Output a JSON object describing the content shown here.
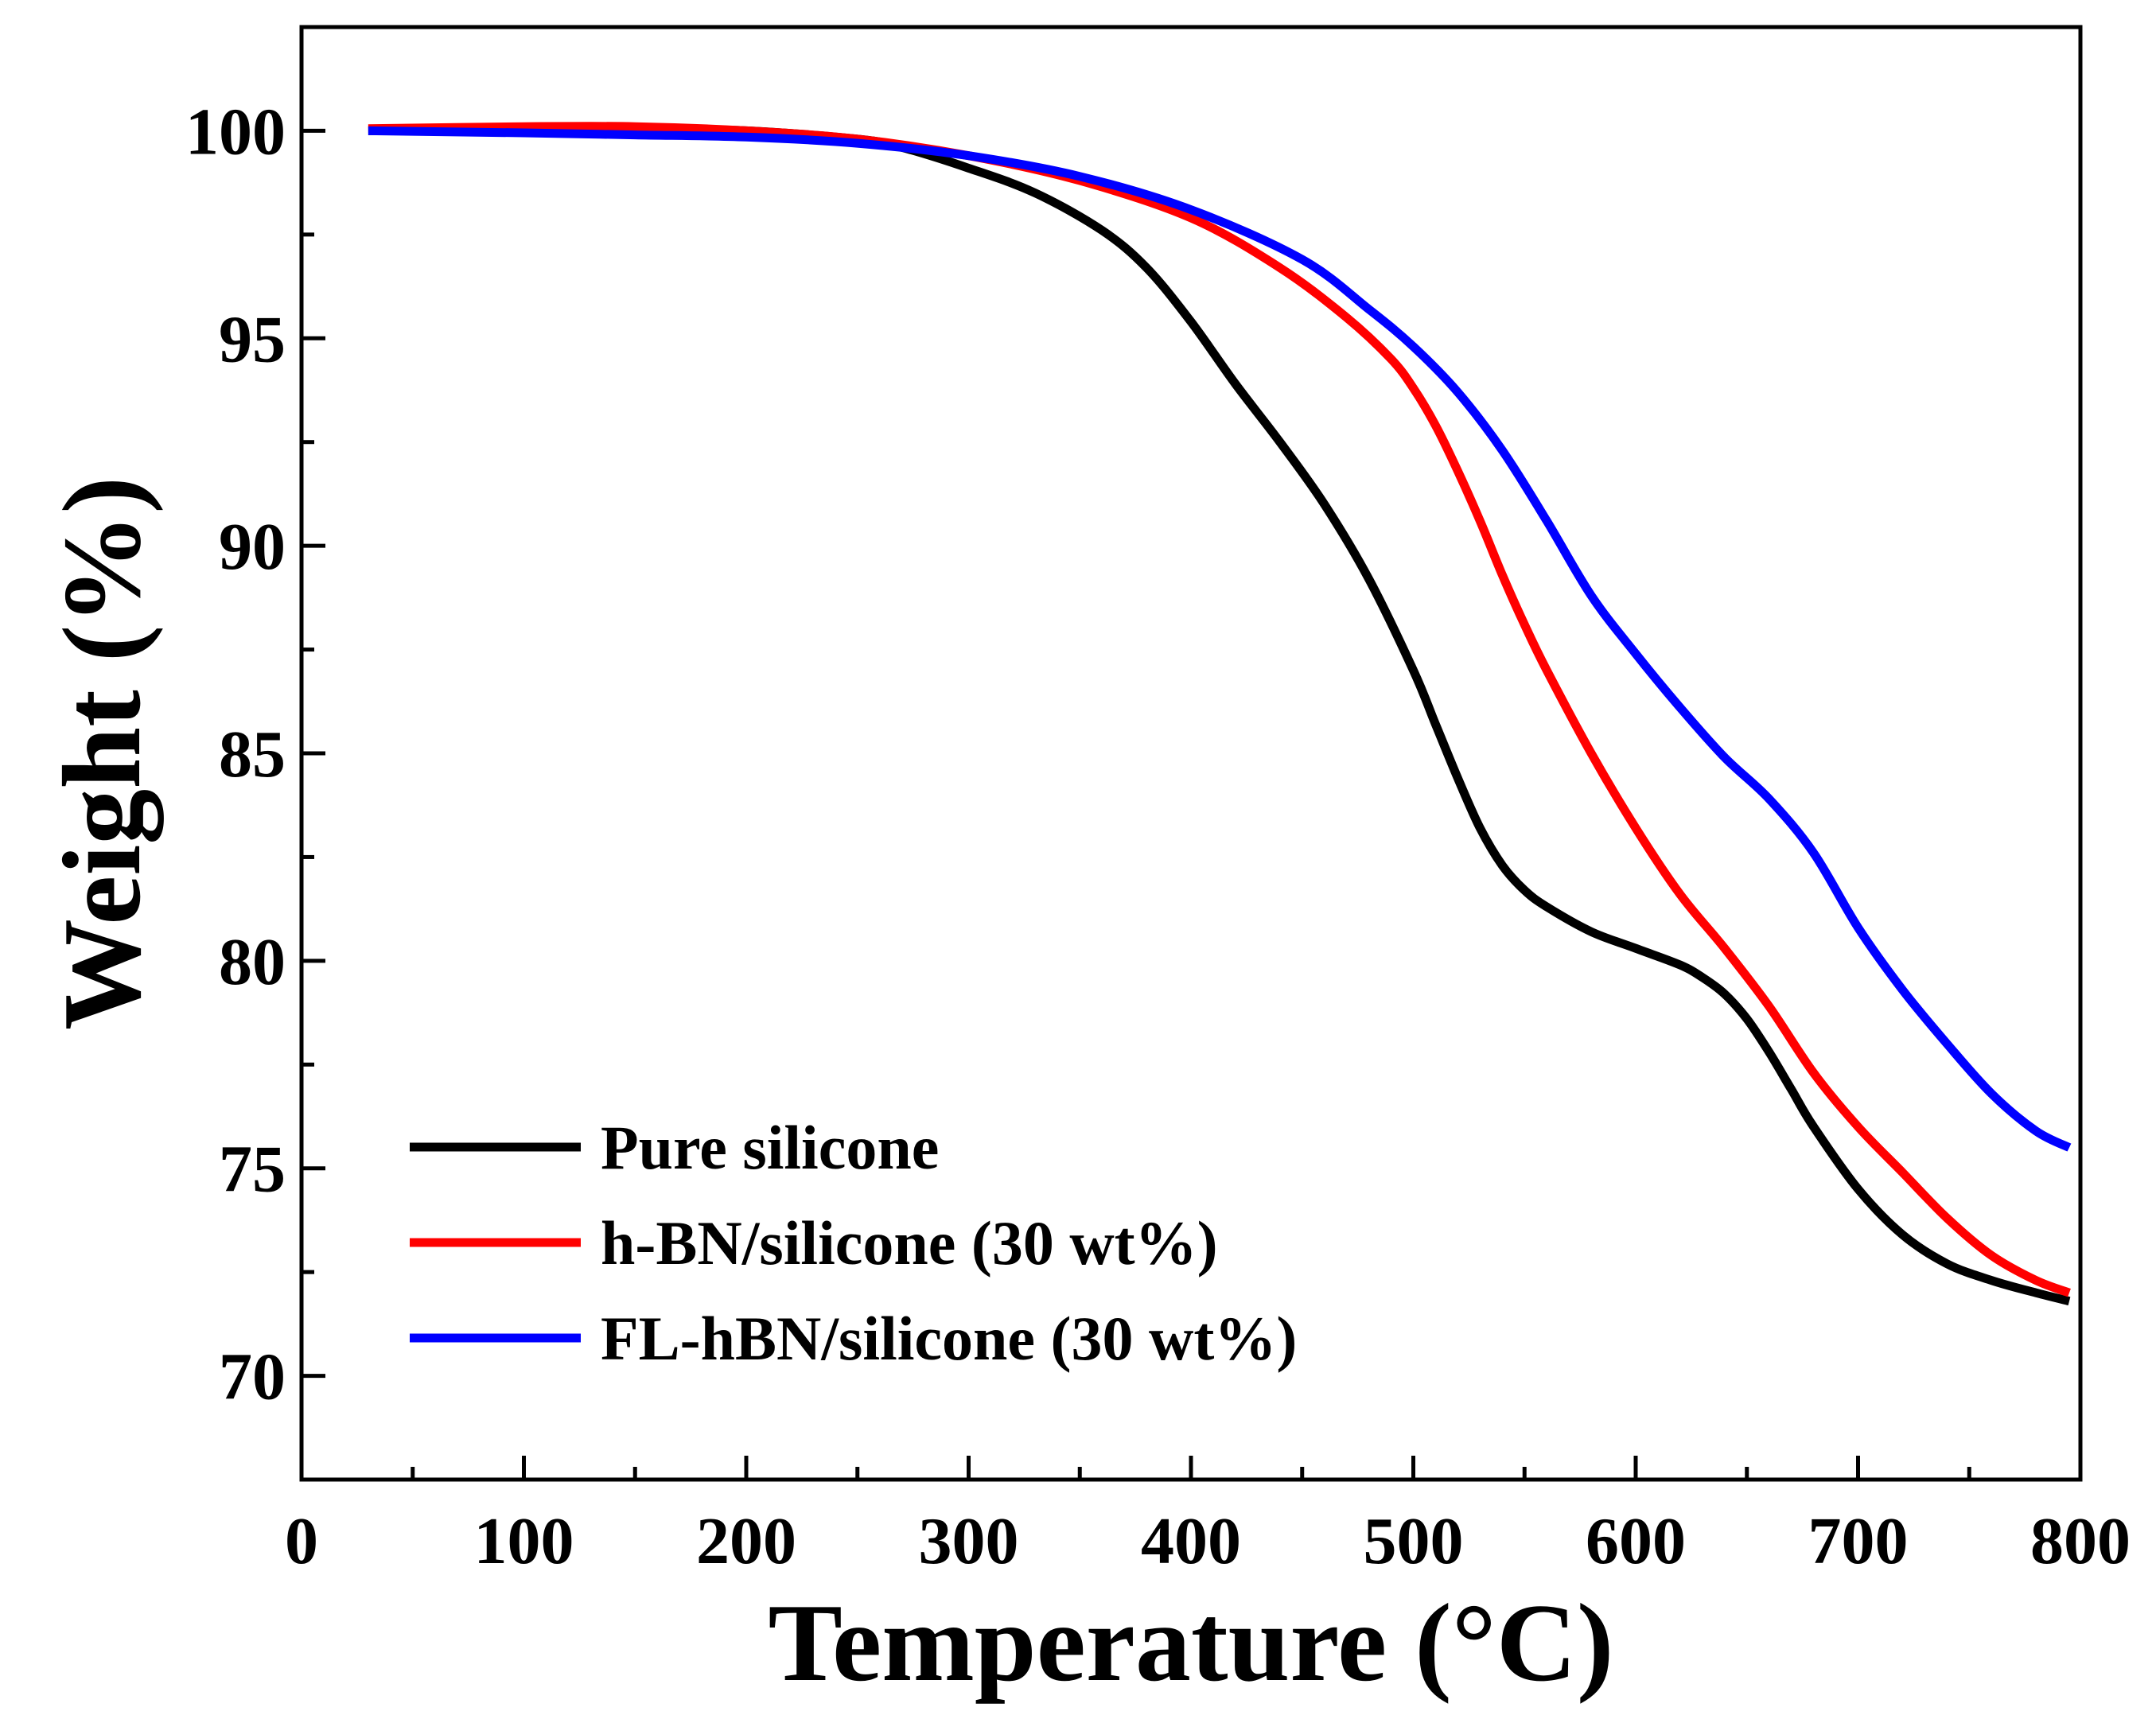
{
  "chart_data": {
    "type": "line",
    "title": "",
    "xlabel": "Temperature (°C)",
    "ylabel": "Weight (%)",
    "xlim": [
      0,
      800
    ],
    "ylim": [
      67.5,
      102.5
    ],
    "xticks": [
      0,
      100,
      200,
      300,
      400,
      500,
      600,
      700,
      800
    ],
    "yticks": [
      70,
      75,
      80,
      85,
      90,
      95,
      100
    ],
    "grid": false,
    "legend_position": "bottom-left",
    "series": [
      {
        "name": "Pure silicone",
        "color": "#000000",
        "x": [
          30,
          100,
          150,
          200,
          250,
          270,
          300,
          330,
          360,
          380,
          400,
          420,
          440,
          460,
          480,
          500,
          510,
          520,
          530,
          540,
          550,
          560,
          580,
          600,
          620,
          630,
          640,
          650,
          660,
          670,
          680,
          700,
          720,
          740,
          760,
          780,
          795
        ],
        "y": [
          100.0,
          100.05,
          100.05,
          100.0,
          99.8,
          99.6,
          99.1,
          98.5,
          97.6,
          96.7,
          95.4,
          93.9,
          92.5,
          91.0,
          89.2,
          87.0,
          85.7,
          84.4,
          83.2,
          82.3,
          81.7,
          81.3,
          80.7,
          80.3,
          79.9,
          79.6,
          79.2,
          78.6,
          77.8,
          76.9,
          76.0,
          74.5,
          73.4,
          72.7,
          72.3,
          72.0,
          71.8
        ]
      },
      {
        "name": "h-BN/silicone (30 wt%)",
        "color": "#ff0000",
        "x": [
          30,
          100,
          150,
          200,
          250,
          300,
          350,
          400,
          440,
          470,
          490,
          500,
          510,
          520,
          530,
          540,
          550,
          560,
          580,
          600,
          620,
          640,
          660,
          680,
          700,
          720,
          740,
          760,
          780,
          795
        ],
        "y": [
          100.05,
          100.1,
          100.1,
          100.0,
          99.8,
          99.4,
          98.8,
          97.9,
          96.7,
          95.5,
          94.5,
          93.8,
          92.9,
          91.8,
          90.6,
          89.3,
          88.1,
          87.0,
          85.0,
          83.2,
          81.6,
          80.3,
          78.9,
          77.3,
          76.0,
          74.9,
          73.8,
          72.9,
          72.3,
          72.0
        ]
      },
      {
        "name": "FL-hBN/silicone (30 wt%)",
        "color": "#0000ff",
        "x": [
          30,
          100,
          150,
          200,
          250,
          300,
          350,
          400,
          450,
          480,
          500,
          520,
          540,
          560,
          580,
          600,
          620,
          640,
          660,
          680,
          700,
          720,
          740,
          760,
          780,
          795
        ],
        "y": [
          100.0,
          99.95,
          99.9,
          99.85,
          99.7,
          99.4,
          98.9,
          98.1,
          96.9,
          95.7,
          94.8,
          93.7,
          92.3,
          90.6,
          88.8,
          87.4,
          86.1,
          84.9,
          83.9,
          82.6,
          80.8,
          79.3,
          78.0,
          76.8,
          75.9,
          75.5
        ]
      }
    ]
  }
}
